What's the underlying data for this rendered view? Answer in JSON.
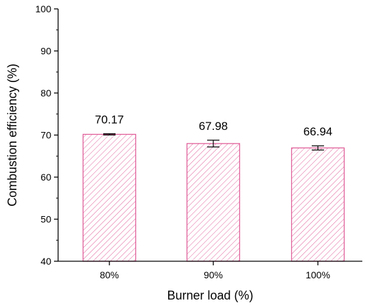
{
  "chart_data": {
    "type": "bar",
    "categories": [
      "80%",
      "90%",
      "100%"
    ],
    "values": [
      70.17,
      67.98,
      66.94
    ],
    "errors": [
      0.15,
      0.8,
      0.5
    ],
    "data_labels": [
      "70.17",
      "67.98",
      "66.94"
    ],
    "xlabel": "Burner load (%)",
    "ylabel": "Combustion efficiency (%)",
    "ylim": [
      40,
      100
    ],
    "yticks": [
      40,
      50,
      60,
      70,
      80,
      90,
      100
    ],
    "grid": false,
    "bar_style": "hatched",
    "colors": {
      "bar": "#e0609a",
      "axis": "#000000",
      "error_bar": "#000000"
    }
  }
}
